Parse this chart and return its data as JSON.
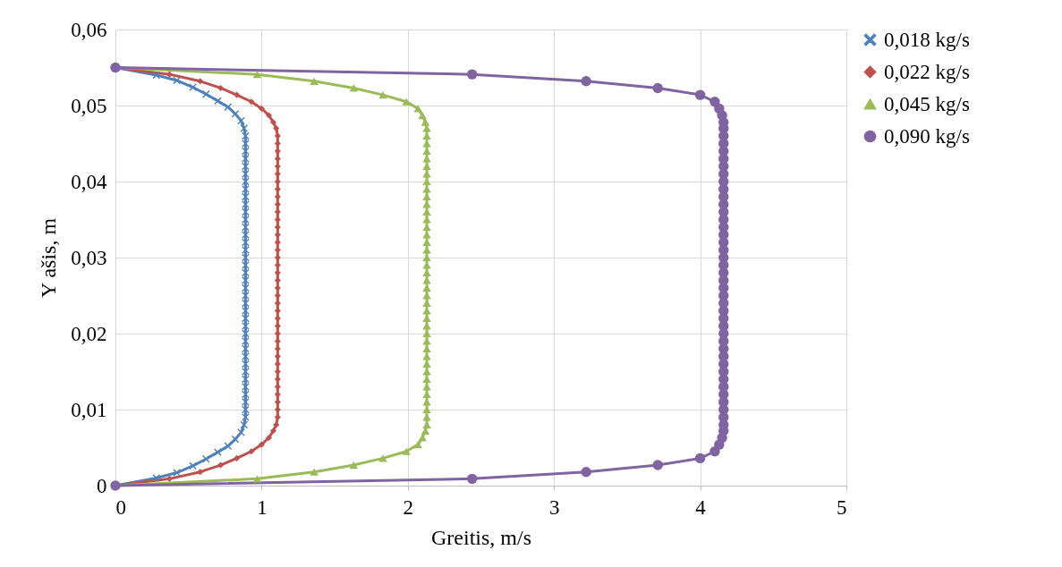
{
  "chart_data": {
    "type": "line",
    "xlabel": "Greitis, m/s",
    "ylabel": "Y ašis, m",
    "xlim": [
      0,
      5
    ],
    "xticks": [
      0,
      1,
      2,
      3,
      4,
      5
    ],
    "ylim": [
      0,
      0.06
    ],
    "yticks": [
      0,
      {
        "value": 0.01,
        "label": "0,01"
      },
      {
        "value": 0.02,
        "label": "0,02"
      },
      {
        "value": 0.03,
        "label": "0,03"
      },
      {
        "value": 0.04,
        "label": "0,04"
      },
      {
        "value": 0.05,
        "label": "0,05"
      },
      {
        "value": 0.06,
        "label": "0,06"
      }
    ],
    "grid": true,
    "legend": "right",
    "line_style": "solid",
    "series": [
      {
        "name": "0,018 kg/s",
        "color": "#4f81bd",
        "marker": "cross",
        "x": [
          0,
          0.28,
          0.42,
          0.53,
          0.62,
          0.7,
          0.77,
          0.82,
          0.86,
          0.88,
          0.89,
          0.89,
          0.89,
          0.89,
          0.89,
          0.89,
          0.89,
          0.89,
          0.89,
          0.89,
          0.89,
          0.89,
          0.89,
          0.89,
          0.89,
          0.89,
          0.89,
          0.89,
          0.89,
          0.89,
          0.89,
          0.89,
          0.89,
          0.89,
          0.89,
          0.89,
          0.89,
          0.89,
          0.89,
          0.89,
          0.89,
          0.89,
          0.89,
          0.89,
          0.89,
          0.89,
          0.89,
          0.89,
          0.88,
          0.86,
          0.82,
          0.77,
          0.7,
          0.62,
          0.53,
          0.42,
          0.28,
          0
        ],
        "values": [
          0,
          0.001,
          0.0017,
          0.0026,
          0.0035,
          0.0044,
          0.0052,
          0.0061,
          0.007,
          0.008,
          0.009,
          0.01,
          0.011,
          0.012,
          0.013,
          0.014,
          0.015,
          0.016,
          0.017,
          0.018,
          0.019,
          0.02,
          0.021,
          0.022,
          0.023,
          0.024,
          0.025,
          0.026,
          0.027,
          0.028,
          0.029,
          0.03,
          0.031,
          0.032,
          0.033,
          0.034,
          0.035,
          0.036,
          0.037,
          0.038,
          0.039,
          0.04,
          0.041,
          0.042,
          0.043,
          0.044,
          0.045,
          0.046,
          0.047,
          0.048,
          0.0489,
          0.0498,
          0.0506,
          0.0515,
          0.0524,
          0.0533,
          0.054,
          0.055
        ]
      },
      {
        "name": "0,022 kg/s",
        "color": "#c0504d",
        "marker": "diamond",
        "x": [
          0,
          0.37,
          0.58,
          0.72,
          0.83,
          0.93,
          1,
          1.05,
          1.08,
          1.1,
          1.11,
          1.11,
          1.11,
          1.11,
          1.11,
          1.11,
          1.11,
          1.11,
          1.11,
          1.11,
          1.11,
          1.11,
          1.11,
          1.11,
          1.11,
          1.11,
          1.11,
          1.11,
          1.11,
          1.11,
          1.11,
          1.11,
          1.11,
          1.11,
          1.11,
          1.11,
          1.11,
          1.11,
          1.11,
          1.11,
          1.11,
          1.11,
          1.11,
          1.11,
          1.11,
          1.11,
          1.11,
          1.11,
          1.1,
          1.08,
          1.05,
          1,
          0.93,
          0.83,
          0.72,
          0.58,
          0.37,
          0
        ],
        "values": [
          0,
          0.0009,
          0.0018,
          0.0027,
          0.0036,
          0.0045,
          0.0054,
          0.0063,
          0.0072,
          0.008,
          0.009,
          0.01,
          0.011,
          0.012,
          0.013,
          0.014,
          0.015,
          0.016,
          0.017,
          0.018,
          0.019,
          0.02,
          0.021,
          0.022,
          0.023,
          0.024,
          0.025,
          0.026,
          0.027,
          0.028,
          0.029,
          0.03,
          0.031,
          0.032,
          0.033,
          0.034,
          0.035,
          0.036,
          0.037,
          0.038,
          0.039,
          0.04,
          0.041,
          0.042,
          0.043,
          0.044,
          0.045,
          0.046,
          0.047,
          0.0478,
          0.0487,
          0.0496,
          0.0505,
          0.0514,
          0.0523,
          0.0532,
          0.0541,
          0.055
        ]
      },
      {
        "name": "0,045 kg/s",
        "color": "#9bbb59",
        "marker": "triangle",
        "x": [
          0,
          0.97,
          1.36,
          1.63,
          1.83,
          1.99,
          2.07,
          2.1,
          2.12,
          2.13,
          2.13,
          2.13,
          2.13,
          2.13,
          2.13,
          2.13,
          2.13,
          2.13,
          2.13,
          2.13,
          2.13,
          2.13,
          2.13,
          2.13,
          2.13,
          2.13,
          2.13,
          2.13,
          2.13,
          2.13,
          2.13,
          2.13,
          2.13,
          2.13,
          2.13,
          2.13,
          2.13,
          2.13,
          2.13,
          2.13,
          2.13,
          2.13,
          2.13,
          2.13,
          2.13,
          2.13,
          2.13,
          2.13,
          2.13,
          2.12,
          2.1,
          2.07,
          1.99,
          1.83,
          1.63,
          1.36,
          0.97,
          0
        ],
        "values": [
          0,
          0.0009,
          0.0018,
          0.0027,
          0.0036,
          0.0045,
          0.0054,
          0.0063,
          0.0072,
          0.008,
          0.009,
          0.01,
          0.011,
          0.012,
          0.013,
          0.014,
          0.015,
          0.016,
          0.017,
          0.018,
          0.019,
          0.02,
          0.021,
          0.022,
          0.023,
          0.024,
          0.025,
          0.026,
          0.027,
          0.028,
          0.029,
          0.03,
          0.031,
          0.032,
          0.033,
          0.034,
          0.035,
          0.036,
          0.037,
          0.038,
          0.039,
          0.04,
          0.041,
          0.042,
          0.043,
          0.044,
          0.045,
          0.046,
          0.047,
          0.0478,
          0.0487,
          0.0496,
          0.0505,
          0.0514,
          0.0523,
          0.0532,
          0.0541,
          0.055
        ]
      },
      {
        "name": "0,090 kg/s",
        "color": "#8064a2",
        "marker": "circle",
        "x": [
          0,
          2.44,
          3.22,
          3.71,
          4,
          4.1,
          4.13,
          4.15,
          4.16,
          4.16,
          4.16,
          4.16,
          4.16,
          4.16,
          4.16,
          4.16,
          4.16,
          4.16,
          4.16,
          4.16,
          4.16,
          4.16,
          4.16,
          4.16,
          4.16,
          4.16,
          4.16,
          4.16,
          4.16,
          4.16,
          4.16,
          4.16,
          4.16,
          4.16,
          4.16,
          4.16,
          4.16,
          4.16,
          4.16,
          4.16,
          4.16,
          4.16,
          4.16,
          4.16,
          4.16,
          4.16,
          4.16,
          4.16,
          4.16,
          4.16,
          4.15,
          4.13,
          4.1,
          4,
          3.71,
          3.22,
          2.44,
          0
        ],
        "values": [
          0,
          0.0009,
          0.0018,
          0.0027,
          0.0036,
          0.0045,
          0.0054,
          0.0063,
          0.0072,
          0.008,
          0.009,
          0.01,
          0.011,
          0.012,
          0.013,
          0.014,
          0.015,
          0.016,
          0.017,
          0.018,
          0.019,
          0.02,
          0.021,
          0.022,
          0.023,
          0.024,
          0.025,
          0.026,
          0.027,
          0.028,
          0.029,
          0.03,
          0.031,
          0.032,
          0.033,
          0.034,
          0.035,
          0.036,
          0.037,
          0.038,
          0.039,
          0.04,
          0.041,
          0.042,
          0.043,
          0.044,
          0.045,
          0.046,
          0.047,
          0.0478,
          0.0487,
          0.0496,
          0.0505,
          0.0514,
          0.0523,
          0.0532,
          0.0541,
          0.055
        ]
      }
    ]
  }
}
